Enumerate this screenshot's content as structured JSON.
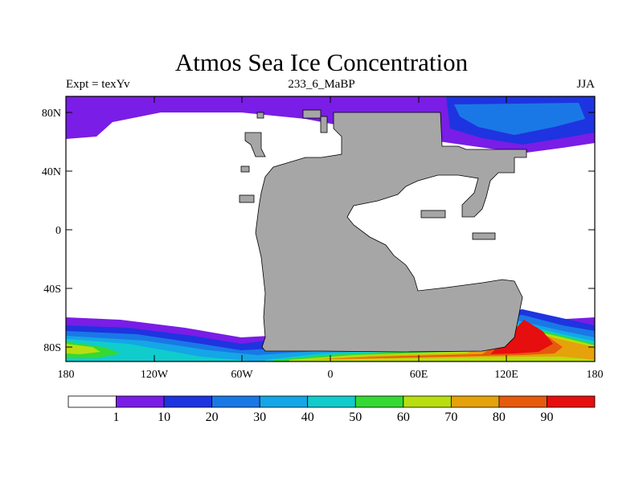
{
  "title": "Atmos Sea Ice Concentration",
  "subtitle_left": "Expt = texYv",
  "subtitle_center": "233_6_MaBP",
  "subtitle_right": "JJA",
  "lat_labels": [
    "80N",
    "40N",
    "0",
    "40S",
    "80S"
  ],
  "lon_labels": [
    "180",
    "120W",
    "60W",
    "0",
    "60E",
    "120E",
    "180"
  ],
  "colorbar": {
    "labels": [
      "1",
      "10",
      "20",
      "30",
      "40",
      "50",
      "60",
      "70",
      "80",
      "90"
    ],
    "colors": [
      "#ffffff",
      "#7a1de6",
      "#1e34e0",
      "#1a78e6",
      "#14a6e6",
      "#10cccc",
      "#34d934",
      "#b8de10",
      "#e6a20a",
      "#e65a0c",
      "#e60e0e"
    ]
  },
  "land_color": "#a6a6a6"
}
